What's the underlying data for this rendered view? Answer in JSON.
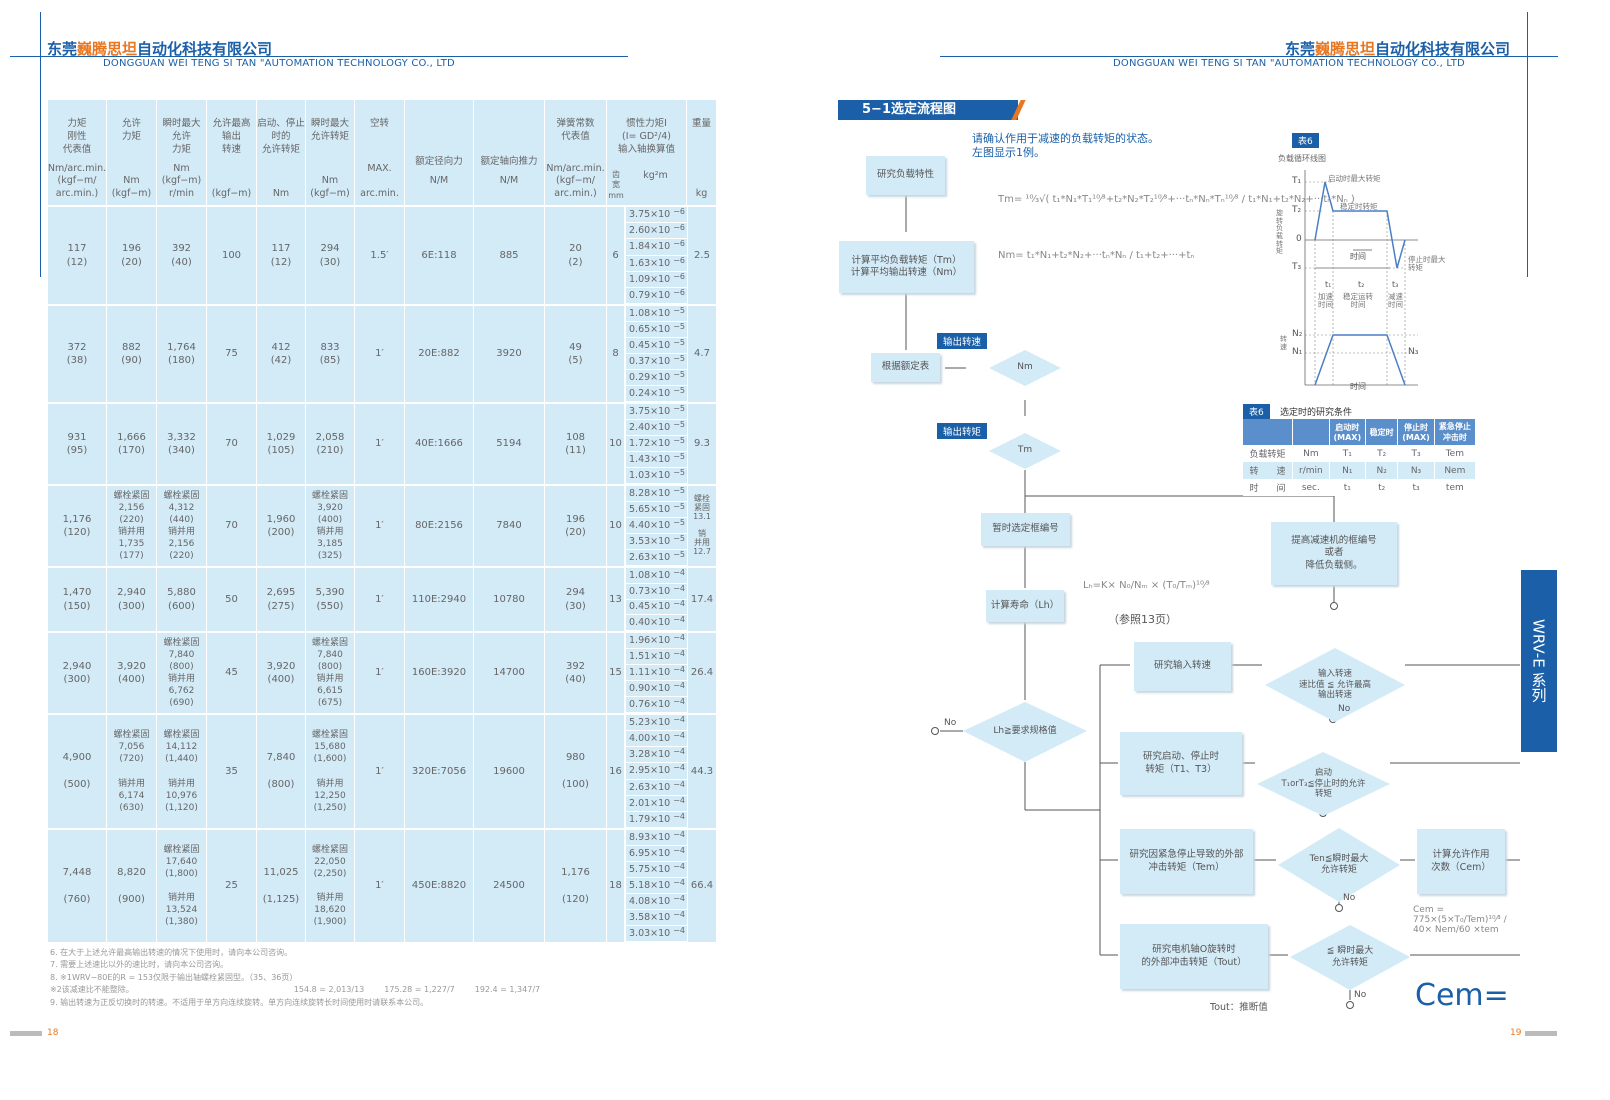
{
  "header": {
    "company_prefix": "东莞",
    "company_highlight": "巍腾思坦",
    "company_suffix": "自动化科技有限公司",
    "company_en": "DONGGUAN WEI TENG SI TAN \"AUTOMATION TECHNOLOGY CO., LTD"
  },
  "table": {
    "headers": [
      {
        "title": "力矩\n刚性\n代表值",
        "unit": "Nm/arc.min.\n(kgf−m/\narc.min.)"
      },
      {
        "title": "允许\n力矩",
        "unit": "Nm\n(kgf−m)"
      },
      {
        "title": "瞬时最大\n允许\n力矩",
        "unit": "Nm\n(kgf−m)\nr/min"
      },
      {
        "title": "允许最高\n输出\n转速",
        "unit": "(kgf−m)"
      },
      {
        "title": "启动、停止\n时的\n允许转矩",
        "unit": "Nm\n "
      },
      {
        "title": "瞬时最大\n允许转矩",
        "unit": "Nm\n(kgf−m)"
      },
      {
        "title": "空转",
        "unit": "MAX.\n\narc.min."
      },
      {
        "title": "\n\n\n额定径向力",
        "unit": "N/M\n\n "
      },
      {
        "title": "\n\n\n额定轴向推力",
        "unit": "N/M\n\n "
      },
      {
        "title": "弹簧常数\n代表值",
        "unit": "Nm/arc.min.\n(kgf−m/\narc.min.)"
      },
      {
        "title": "惯性力矩I\n(I= GD²/4)\n输入轴换算值",
        "unit": "",
        "sub_width": "齿\n宽\nmm",
        "sub_inertia": "kg²m"
      },
      {
        "title": "重量",
        "unit": "kg"
      }
    ],
    "rows": [
      {
        "cells": [
          "117\n(12)",
          "196\n(20)",
          "392\n(40)",
          "100",
          "117\n(12)",
          "294\n(30)",
          "1.5′",
          "6E:118",
          "885",
          "20\n(2)"
        ],
        "width": "6",
        "inertia": [
          "3.75×10",
          "2.60×10",
          "1.84×10",
          "1.63×10",
          "1.09×10",
          "0.79×10"
        ],
        "exp": "−6",
        "weight": "2.5"
      },
      {
        "cells": [
          "372\n(38)",
          "882\n(90)",
          "1,764\n(180)",
          "75",
          "412\n(42)",
          "833\n(85)",
          "1′",
          "20E:882",
          "3920",
          "49\n(5)"
        ],
        "width": "8",
        "inertia": [
          "1.08×10",
          "0.65×10",
          "0.45×10",
          "0.37×10",
          "0.29×10",
          "0.24×10"
        ],
        "exp": "−5",
        "weight": "4.7"
      },
      {
        "cells": [
          "931\n(95)",
          "1,666\n(170)",
          "3,332\n(340)",
          "70",
          "1,029\n(105)",
          "2,058\n(210)",
          "1′",
          "40E:1666",
          "5194",
          "108\n(11)"
        ],
        "width": "10",
        "inertia": [
          "3.75×10",
          "2.40×10",
          "1.72×10",
          "1.43×10",
          "1.03×10"
        ],
        "exp": "−5",
        "weight": "9.3"
      },
      {
        "cells": [
          "1,176\n(120)",
          "螺栓紧固\n2,156\n(220)\n销并用\n1,735\n(177)",
          "螺栓紧固\n4,312\n(440)\n销并用\n2,156\n(220)",
          "70",
          "1,960\n(200)",
          "螺栓紧固\n3,920\n(400)\n销并用\n3,185\n(325)",
          "1′",
          "80E:2156",
          "7840",
          "196\n(20)"
        ],
        "width": "10",
        "inertia": [
          "8.28×10",
          "5.65×10",
          "4.40×10",
          "3.53×10",
          "2.63×10"
        ],
        "exp": "−5",
        "weight": "螺栓\n紧固\n13.1\n\n销\n并用\n12.7"
      },
      {
        "cells": [
          "1,470\n(150)",
          "2,940\n(300)",
          "5,880\n(600)",
          "50",
          "2,695\n(275)",
          "5,390\n(550)",
          "1′",
          "110E:2940",
          "10780",
          "294\n(30)"
        ],
        "width": "13",
        "inertia": [
          "1.08×10",
          "0.73×10",
          "0.45×10",
          "0.40×10"
        ],
        "exp": "−4",
        "weight": "17.4"
      },
      {
        "cells": [
          "2,940\n(300)",
          "3,920\n(400)",
          "螺栓紧固\n7,840\n(800)\n销并用\n6,762\n(690)",
          "45",
          "3,920\n(400)",
          "螺栓紧固\n7,840\n(800)\n销并用\n6,615\n(675)",
          "1′",
          "160E:3920",
          "14700",
          "392\n(40)"
        ],
        "width": "15",
        "inertia": [
          "1.96×10",
          "1.51×10",
          "1.11×10",
          "0.90×10",
          "0.76×10"
        ],
        "exp": "−4",
        "weight": "26.4"
      },
      {
        "cells": [
          "4,900\n\n(500)",
          "螺栓紧固\n7,056\n(720)\n\n销并用\n6,174\n(630)",
          "螺栓紧固\n14,112\n(1,440)\n\n销并用\n10,976\n(1,120)",
          "35",
          "7,840\n\n(800)",
          "螺栓紧固\n15,680\n(1,600)\n\n销并用\n12,250\n(1,250)",
          "1′",
          "320E:7056",
          "19600",
          "980\n\n(100)"
        ],
        "width": "16",
        "inertia": [
          "5.23×10",
          "4.00×10",
          "3.28×10",
          "2.95×10",
          "2.63×10",
          "2.01×10",
          "1.79×10"
        ],
        "exp": "−4",
        "weight": "44.3"
      },
      {
        "cells": [
          "7,448\n\n(760)",
          "8,820\n\n(900)",
          "螺栓紧固\n17,640\n(1,800)\n\n销并用\n13,524\n(1,380)",
          "25",
          "11,025\n\n(1,125)",
          "螺栓紧固\n22,050\n(2,250)\n\n销并用\n18,620\n(1,900)",
          "1′",
          "450E:8820",
          "24500",
          "1,176\n\n(120)"
        ],
        "width": "18",
        "inertia": [
          "8.93×10",
          "6.95×10",
          "5.75×10",
          "5.18×10",
          "4.08×10",
          "3.58×10",
          "3.03×10"
        ],
        "exp": "−4",
        "weight": "66.4"
      }
    ]
  },
  "notes": [
    "6.  在大于上述允许最高输出转速的情况下使用时，请向本公司咨询。",
    "7.  需要上述速比以外的速比时，请向本公司咨询。",
    "8.  ※1WRV−80E的R = 153仅限于输出轴螺栓紧固型。（35、36页）",
    "      ※2该减速比不能整除。",
    "9.  输出转速为正反切换时的转速。不适用于单方向连续旋转。单方向连续旋转长时间使用时请联系本公司。"
  ],
  "fractions": [
    "154.8 = 2,013/13",
    "175.28 = 1,227/7",
    "192.4 = 1,347/7"
  ],
  "right": {
    "section_title": "5−1选定流程图",
    "intro": "请确认作用于减速的负载转矩的状态。\n左图显示1例。",
    "boxes": {
      "load": "研究负载特性",
      "avg": "计算平均负载转矩（Tm）\n计算平均输出转速（Nm）",
      "rated": "根据额定表",
      "frame": "暂时选定框编号",
      "improve": "提高减速机的框编号\n或者\n降低负载侧。",
      "life": "计算寿命（Lh）",
      "input_speed": "研究输入转速",
      "startstop": "研究启动、停止时\n转矩（T1、T3）",
      "emergency": "研究因紧急停止导致的外部\n冲击转矩（Tem）",
      "cem": "计算允许作用\n次数（Cem）",
      "motor": "研究电机轴O旋转时\n的外部冲击转矩（Tout）"
    },
    "diamonds": {
      "nm": "Nm",
      "tm": "Tm",
      "lh": "Lh≧要求规格值",
      "speed": "输入转速\n速比值  ≦ 允许最高\n输出转速",
      "startstop": "启动\nT₁orT₃≦停止时的允许\n转矩",
      "ten": "Ten≦瞬时最大\n允许转矩",
      "tout": "≦ 瞬时最大\n允许转矩"
    },
    "tags": {
      "out_speed": "输出转速",
      "out_torque": "输出转矩"
    },
    "no_label": "No",
    "formulas": {
      "tm": "Tm= ¹⁰⁄₃√( t₁*N₁*T₁¹⁰⁄³+t₂*N₂*T₂¹⁰⁄³+···tₙ*Nₙ*Tₙ¹⁰⁄³ / t₁*N₁+t₂*N₂+···tₙ*Nₙ )",
      "nm": "Nm= t₁*N₁+t₂*N₂+···tₙ*Nₙ / t₁+t₂+···+tₙ",
      "lh": "Lₕ=K× N₀/Nₘ × (T₀/Tₘ)¹⁰⁄³",
      "lh_ref": "（参照13页）",
      "cem": "Cem = 775×(5×T₀/Tem)¹⁰⁄³ / 40× Nem/60 ×tem"
    },
    "tout_note": "Tout：推断值",
    "big_text": "Cem=",
    "side_tab": "WRV-E 系列",
    "chart": {
      "tag": "表6",
      "title": "负载循环线图",
      "y_label": "旋转负载转矩",
      "levels": [
        "T₁",
        "T₂",
        "0",
        "T₃"
      ],
      "ann_start": "启动时最大转矩",
      "ann_steady": "稳定时转矩",
      "ann_stop": "停止时最大\n转矩",
      "time": "时间",
      "periods": [
        "t₁",
        "t₂",
        "t₃"
      ],
      "phases": [
        "加速\n时间",
        "稳定运转\n时间",
        "减速\n时间"
      ],
      "speed_label": "转速",
      "speed_levels": [
        "N₂",
        "N₁",
        "N₃"
      ]
    },
    "table6": {
      "tag": "表6",
      "title": "选定时的研究条件",
      "headers": [
        "",
        "",
        "启动时\n(MAX)",
        "稳定时",
        "停止时\n(MAX)",
        "紧急停止\n冲击时"
      ],
      "rows": [
        [
          "负载转矩",
          "Nm",
          "T₁",
          "T₂",
          "T₃",
          "Tem"
        ],
        [
          "转　　速",
          "r/min",
          "N₁",
          "N₂",
          "N₃",
          "Nem"
        ],
        [
          "时　　间",
          "sec.",
          "t₁",
          "t₂",
          "t₃",
          "tem"
        ]
      ]
    }
  },
  "pages": {
    "left": "18",
    "right": "19"
  },
  "colors": {
    "brand_blue": "#1a5fa8",
    "accent_orange": "#e87722",
    "cell_bg": "#d3eaf7"
  }
}
